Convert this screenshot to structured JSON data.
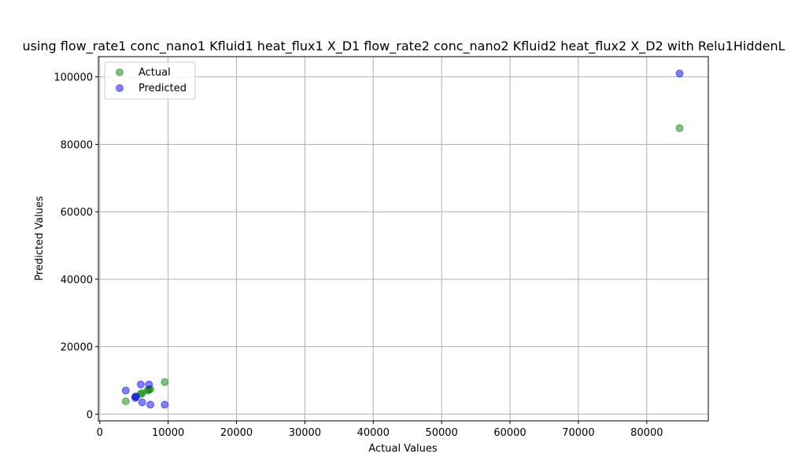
{
  "chart_data": {
    "type": "scatter",
    "title": "using flow_rate1 conc_nano1 Kfluid1 heat_flux1 X_D1 flow_rate2 conc_nano2 Kfluid2 heat_flux2 X_D2 with Relu1HiddenL",
    "xlabel": "Actual Values",
    "ylabel": "Predicted Values",
    "xlim": [
      -200,
      89000
    ],
    "ylim": [
      -2000,
      106000
    ],
    "xticks": [
      0,
      10000,
      20000,
      30000,
      40000,
      50000,
      60000,
      70000,
      80000
    ],
    "yticks": [
      0,
      20000,
      40000,
      60000,
      80000,
      100000
    ],
    "grid": true,
    "legend_position": "top-left",
    "series": [
      {
        "name": "Actual",
        "color": "#008000",
        "points": [
          [
            3800,
            3800
          ],
          [
            5200,
            5200
          ],
          [
            6000,
            6000
          ],
          [
            6200,
            6200
          ],
          [
            7000,
            7000
          ],
          [
            7200,
            7200
          ],
          [
            7400,
            7400
          ],
          [
            9500,
            9500
          ],
          [
            84800,
            84800
          ]
        ]
      },
      {
        "name": "Predicted",
        "color": "#0000ff",
        "points": [
          [
            3800,
            7000
          ],
          [
            5200,
            4800
          ],
          [
            5300,
            5200
          ],
          [
            6000,
            8800
          ],
          [
            6200,
            3500
          ],
          [
            7200,
            8800
          ],
          [
            7400,
            2800
          ],
          [
            9500,
            2800
          ],
          [
            84800,
            101000
          ]
        ]
      }
    ]
  }
}
